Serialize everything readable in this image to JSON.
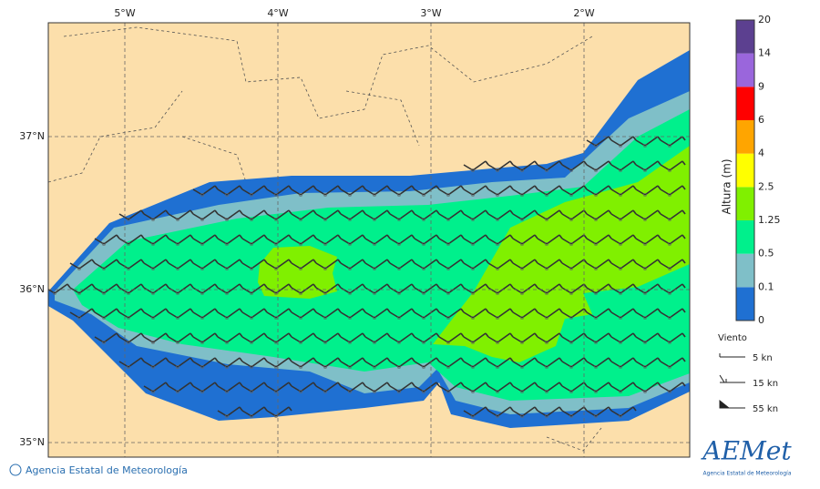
{
  "map": {
    "lon_labels": [
      "5°W",
      "4°W",
      "3°W",
      "2°W"
    ],
    "lat_labels": [
      "37°N",
      "36°N",
      "35°N"
    ]
  },
  "colorbar": {
    "title": "Altura (m)",
    "levels": [
      0,
      0.1,
      0.5,
      1.25,
      2.5,
      4,
      6,
      9,
      14,
      20
    ],
    "colors": [
      "#1f70d2",
      "#7fbfc8",
      "#00f08c",
      "#80f000",
      "#ffff00",
      "#ffa500",
      "#ff0000",
      "#9a66dc",
      "#5c4090"
    ]
  },
  "wind_legend": {
    "title": "Viento",
    "items": [
      "5 kn",
      "15 kn",
      "55 kn"
    ]
  },
  "footer": {
    "credit": "Agencia Estatal de Meteorología",
    "logo": "AEMet",
    "logo_subtitle": "Agencia Estatal de Meteorología"
  }
}
